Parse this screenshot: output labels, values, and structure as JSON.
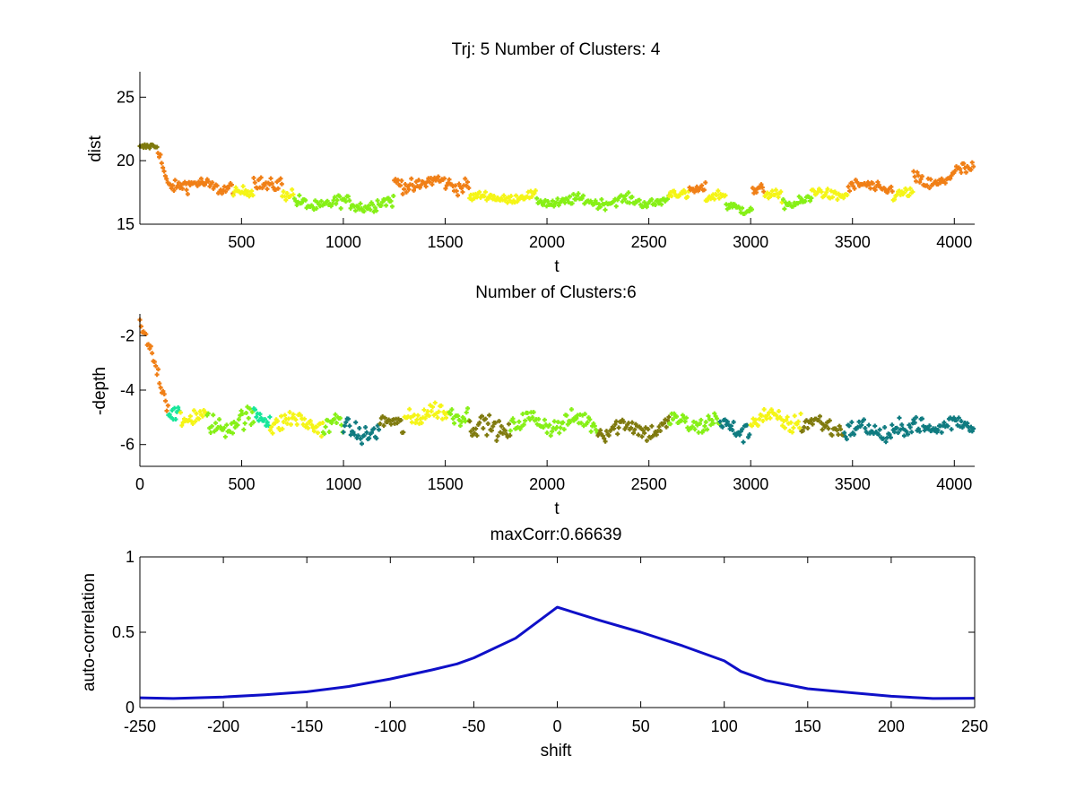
{
  "colors": {
    "orange": "#f07f16",
    "olive": "#7f7a0e",
    "yellow": "#f5f516",
    "lime": "#86f016",
    "teal": "#0f7b80",
    "aqua": "#16e69a",
    "blue": "#0f10c8",
    "axis": "#000000",
    "background": "#ffffff"
  },
  "chart_data": [
    {
      "id": "dist-plot",
      "type": "scatter",
      "title": "Trj: 5 Number of Clusters: 4",
      "xlabel": "t",
      "ylabel": "dist",
      "xlim": [
        1,
        4100
      ],
      "ylim": [
        15,
        27
      ],
      "xticks": [
        500,
        1000,
        1500,
        2000,
        2500,
        3000,
        3500,
        4000
      ],
      "yticks": [
        15,
        20,
        25
      ],
      "segments": [
        {
          "t0": 1,
          "t1": 90,
          "mean": 21.0,
          "noise": 0.25,
          "color": "olive",
          "start": 21.0
        },
        {
          "t0": 90,
          "t1": 230,
          "mean": 18.2,
          "noise": 0.4,
          "color": "orange",
          "start": 20.8
        },
        {
          "t0": 230,
          "t1": 460,
          "mean": 18.0,
          "noise": 0.45,
          "color": "orange"
        },
        {
          "t0": 460,
          "t1": 560,
          "mean": 17.4,
          "noise": 0.35,
          "color": "yellow"
        },
        {
          "t0": 560,
          "t1": 700,
          "mean": 18.3,
          "noise": 0.5,
          "color": "orange"
        },
        {
          "t0": 700,
          "t1": 760,
          "mean": 17.2,
          "noise": 0.4,
          "color": "yellow"
        },
        {
          "t0": 760,
          "t1": 1250,
          "mean": 16.6,
          "noise": 0.45,
          "color": "lime"
        },
        {
          "t0": 1250,
          "t1": 1620,
          "mean": 18.2,
          "noise": 0.5,
          "color": "orange"
        },
        {
          "t0": 1620,
          "t1": 1950,
          "mean": 17.1,
          "noise": 0.3,
          "color": "yellow"
        },
        {
          "t0": 1950,
          "t1": 2600,
          "mean": 16.8,
          "noise": 0.35,
          "color": "lime"
        },
        {
          "t0": 2600,
          "t1": 2700,
          "mean": 17.3,
          "noise": 0.35,
          "color": "yellow"
        },
        {
          "t0": 2700,
          "t1": 2780,
          "mean": 17.9,
          "noise": 0.35,
          "color": "orange"
        },
        {
          "t0": 2780,
          "t1": 2880,
          "mean": 17.1,
          "noise": 0.35,
          "color": "yellow"
        },
        {
          "t0": 2880,
          "t1": 3010,
          "mean": 16.4,
          "noise": 0.4,
          "color": "lime"
        },
        {
          "t0": 3010,
          "t1": 3070,
          "mean": 17.6,
          "noise": 0.35,
          "color": "orange"
        },
        {
          "t0": 3070,
          "t1": 3160,
          "mean": 17.2,
          "noise": 0.35,
          "color": "yellow"
        },
        {
          "t0": 3160,
          "t1": 3300,
          "mean": 16.8,
          "noise": 0.4,
          "color": "lime"
        },
        {
          "t0": 3300,
          "t1": 3480,
          "mean": 17.4,
          "noise": 0.35,
          "color": "yellow"
        },
        {
          "t0": 3480,
          "t1": 3700,
          "mean": 17.9,
          "noise": 0.4,
          "color": "orange"
        },
        {
          "t0": 3700,
          "t1": 3800,
          "mean": 17.3,
          "noise": 0.35,
          "color": "yellow"
        },
        {
          "t0": 3800,
          "t1": 4100,
          "mean": 18.4,
          "noise": 0.5,
          "color": "orange",
          "end": 19.6
        }
      ]
    },
    {
      "id": "depth-plot",
      "type": "scatter",
      "title": "Number of Clusters:6",
      "xlabel": "t",
      "ylabel": "-depth",
      "xlim": [
        0,
        4100
      ],
      "ylim": [
        -6.8,
        -1.2
      ],
      "xticks": [
        0,
        500,
        1000,
        1500,
        2000,
        2500,
        3000,
        3500,
        4000
      ],
      "yticks": [
        -6,
        -4,
        -2
      ],
      "segments": [
        {
          "t0": 0,
          "t1": 140,
          "mean": -3.2,
          "noise": 0.25,
          "color": "orange",
          "start": -1.6,
          "end": -4.6
        },
        {
          "t0": 140,
          "t1": 200,
          "mean": -4.7,
          "noise": 0.25,
          "color": "aqua"
        },
        {
          "t0": 200,
          "t1": 330,
          "mean": -5.1,
          "noise": 0.3,
          "color": "yellow"
        },
        {
          "t0": 330,
          "t1": 560,
          "mean": -5.2,
          "noise": 0.35,
          "color": "lime"
        },
        {
          "t0": 560,
          "t1": 640,
          "mean": -4.9,
          "noise": 0.3,
          "color": "aqua"
        },
        {
          "t0": 640,
          "t1": 900,
          "mean": -5.2,
          "noise": 0.3,
          "color": "yellow"
        },
        {
          "t0": 900,
          "t1": 1000,
          "mean": -5.3,
          "noise": 0.35,
          "color": "lime"
        },
        {
          "t0": 1000,
          "t1": 1180,
          "mean": -5.5,
          "noise": 0.3,
          "color": "teal"
        },
        {
          "t0": 1180,
          "t1": 1300,
          "mean": -5.3,
          "noise": 0.3,
          "color": "olive"
        },
        {
          "t0": 1300,
          "t1": 1520,
          "mean": -4.9,
          "noise": 0.3,
          "color": "yellow"
        },
        {
          "t0": 1520,
          "t1": 1620,
          "mean": -4.8,
          "noise": 0.3,
          "color": "lime"
        },
        {
          "t0": 1620,
          "t1": 1820,
          "mean": -5.4,
          "noise": 0.3,
          "color": "olive"
        },
        {
          "t0": 1820,
          "t1": 2250,
          "mean": -5.2,
          "noise": 0.3,
          "color": "lime"
        },
        {
          "t0": 2250,
          "t1": 2600,
          "mean": -5.4,
          "noise": 0.3,
          "color": "olive"
        },
        {
          "t0": 2600,
          "t1": 2850,
          "mean": -5.2,
          "noise": 0.3,
          "color": "lime"
        },
        {
          "t0": 2850,
          "t1": 3000,
          "mean": -5.4,
          "noise": 0.3,
          "color": "teal"
        },
        {
          "t0": 3000,
          "t1": 3250,
          "mean": -5.1,
          "noise": 0.3,
          "color": "yellow"
        },
        {
          "t0": 3250,
          "t1": 3460,
          "mean": -5.3,
          "noise": 0.3,
          "color": "olive"
        },
        {
          "t0": 3460,
          "t1": 3800,
          "mean": -5.5,
          "noise": 0.3,
          "color": "teal"
        },
        {
          "t0": 3800,
          "t1": 4100,
          "mean": -5.3,
          "noise": 0.3,
          "color": "teal"
        }
      ]
    },
    {
      "id": "corr-plot",
      "type": "line",
      "title": "maxCorr:0.66639",
      "xlabel": "shift",
      "ylabel": "auto-correlation",
      "xlim": [
        -250,
        250
      ],
      "ylim": [
        0,
        1
      ],
      "xticks": [
        -250,
        -200,
        -150,
        -100,
        -50,
        0,
        50,
        100,
        150,
        200,
        250
      ],
      "yticks": [
        0,
        0.5,
        1
      ],
      "ytick_labels": [
        "0",
        "0.5",
        "1"
      ],
      "series": [
        {
          "name": "auto-correlation",
          "color": "blue",
          "x": [
            -250,
            -230,
            -200,
            -175,
            -150,
            -125,
            -100,
            -75,
            -60,
            -50,
            -25,
            0,
            25,
            50,
            75,
            100,
            110,
            125,
            150,
            175,
            200,
            225,
            250
          ],
          "y": [
            0.065,
            0.06,
            0.07,
            0.085,
            0.105,
            0.14,
            0.19,
            0.25,
            0.29,
            0.33,
            0.46,
            0.666,
            0.58,
            0.5,
            0.41,
            0.31,
            0.24,
            0.18,
            0.125,
            0.1,
            0.075,
            0.06,
            0.062
          ]
        }
      ]
    }
  ]
}
